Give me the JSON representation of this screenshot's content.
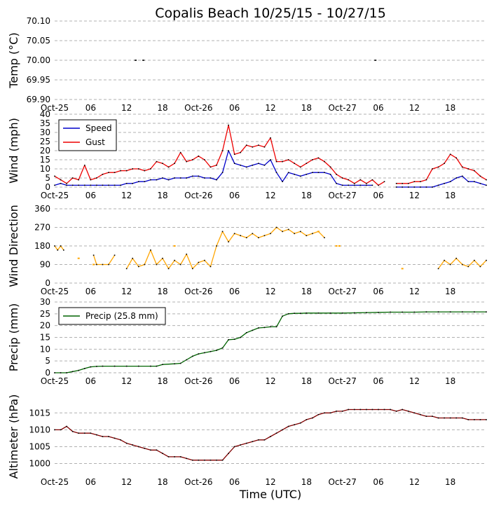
{
  "figure": {
    "title": "Copalis Beach 10/25/15 - 10/27/15",
    "xlabel": "Time (UTC)",
    "x_tick_labels": [
      "Oct-25",
      "06",
      "12",
      "18",
      "Oct-26",
      "06",
      "12",
      "18",
      "Oct-27",
      "06",
      "12",
      "18"
    ],
    "x_tick_hours": [
      0,
      6,
      12,
      18,
      24,
      30,
      36,
      42,
      48,
      54,
      60,
      66
    ],
    "x_range_hours": [
      0,
      72
    ]
  },
  "colors": {
    "speed": "#0000cc",
    "gust": "#ee0000",
    "direction": "#ffa500",
    "precip": "#006400",
    "altimeter": "#800000",
    "grid": "#b0b0b0"
  },
  "chart_data": [
    {
      "id": "temp",
      "type": "scatter",
      "ylabel": "Temp (°C)",
      "ylim": [
        69.9,
        70.1
      ],
      "yticks": [
        69.9,
        69.95,
        70.0,
        70.05,
        70.1
      ],
      "ytick_labels": [
        "69.90",
        "69.95",
        "70.00",
        "70.05",
        "70.10"
      ],
      "series": [
        {
          "name": "Temp",
          "color_key": "grid",
          "x": [
            13.5,
            14.8,
            53.5
          ],
          "y": [
            70.0,
            70.0,
            70.0
          ]
        }
      ]
    },
    {
      "id": "wind",
      "type": "line",
      "ylabel": "Wind (mph)",
      "ylim": [
        0,
        40
      ],
      "yticks": [
        0,
        5,
        10,
        15,
        20,
        25,
        30,
        35,
        40
      ],
      "ytick_labels": [
        "0",
        "5",
        "10",
        "15",
        "20",
        "25",
        "30",
        "35",
        "40"
      ],
      "legend": {
        "position": "top-left",
        "entries": [
          "Speed",
          "Gust"
        ]
      },
      "series": [
        {
          "name": "Speed",
          "color_key": "speed",
          "x": [
            0,
            1,
            2,
            3,
            4,
            5,
            6,
            7,
            8,
            9,
            10,
            11,
            12,
            13,
            14,
            15,
            16,
            17,
            18,
            19,
            20,
            21,
            22,
            23,
            24,
            25,
            26,
            27,
            28,
            29,
            30,
            31,
            32,
            33,
            34,
            35,
            36,
            37,
            38,
            39,
            40,
            41,
            42,
            43,
            44,
            45,
            46,
            47,
            48,
            49,
            50,
            51,
            52,
            53,
            54,
            55,
            56,
            57,
            58,
            59,
            60,
            61,
            62,
            63,
            64,
            65,
            66,
            67,
            68,
            69,
            70,
            71,
            72
          ],
          "y": [
            1,
            2,
            1,
            1,
            1,
            1,
            1,
            1,
            1,
            1,
            1,
            1,
            2,
            2,
            3,
            3,
            4,
            4,
            5,
            4,
            5,
            5,
            5,
            6,
            6,
            5,
            5,
            4,
            8,
            20,
            13,
            12,
            11,
            12,
            13,
            12,
            15,
            8,
            3,
            8,
            7,
            6,
            7,
            8,
            8,
            8,
            7,
            2,
            1,
            1,
            1,
            1,
            1,
            1,
            null,
            null,
            null,
            0,
            0,
            0,
            0,
            0,
            0,
            0,
            1,
            2,
            3,
            5,
            6,
            3,
            3,
            2,
            1
          ]
        },
        {
          "name": "Gust",
          "color_key": "gust",
          "x": [
            0,
            1,
            2,
            3,
            4,
            5,
            6,
            7,
            8,
            9,
            10,
            11,
            12,
            13,
            14,
            15,
            16,
            17,
            18,
            19,
            20,
            21,
            22,
            23,
            24,
            25,
            26,
            27,
            28,
            29,
            30,
            31,
            32,
            33,
            34,
            35,
            36,
            37,
            38,
            39,
            40,
            41,
            42,
            43,
            44,
            45,
            46,
            47,
            48,
            49,
            50,
            51,
            52,
            53,
            54,
            55,
            56,
            57,
            58,
            59,
            60,
            61,
            62,
            63,
            64,
            65,
            66,
            67,
            68,
            69,
            70,
            71,
            72
          ],
          "y": [
            6,
            4,
            2,
            5,
            4,
            12,
            4,
            5,
            7,
            8,
            8,
            9,
            9,
            10,
            10,
            9,
            10,
            14,
            13,
            11,
            13,
            19,
            14,
            15,
            17,
            15,
            11,
            12,
            20,
            34,
            18,
            19,
            23,
            22,
            23,
            22,
            27,
            14,
            14,
            15,
            13,
            11,
            13,
            15,
            16,
            14,
            11,
            7,
            5,
            4,
            2,
            4,
            2,
            4,
            1,
            3,
            null,
            2,
            2,
            2,
            3,
            3,
            4,
            10,
            11,
            13,
            18,
            16,
            11,
            10,
            9,
            6,
            4
          ]
        }
      ]
    },
    {
      "id": "direction",
      "type": "line",
      "ylabel": "Wind Direction",
      "ylim": [
        0,
        360
      ],
      "yticks": [
        0,
        90,
        180,
        270,
        360
      ],
      "ytick_labels": [
        "0",
        "90",
        "180",
        "270",
        "360"
      ],
      "series": [
        {
          "name": "Direction",
          "color_key": "direction",
          "x": [
            0,
            0.5,
            1,
            1.5,
            2,
            4,
            6,
            6.5,
            7,
            8,
            9,
            10,
            11,
            12,
            13,
            14,
            15,
            16,
            17,
            18,
            19,
            20,
            21,
            22,
            23,
            24,
            25,
            26,
            27,
            28,
            29,
            30,
            31,
            32,
            33,
            34,
            35,
            36,
            37,
            38,
            39,
            40,
            41,
            42,
            43,
            44,
            45,
            46,
            47,
            48,
            49,
            50,
            51,
            52,
            53,
            54,
            55,
            56,
            57,
            58,
            59,
            60,
            61,
            62,
            63,
            64,
            65,
            66,
            67,
            68,
            69,
            70,
            71,
            72
          ],
          "y": [
            180,
            160,
            180,
            160,
            null,
            null,
            null,
            135,
            90,
            90,
            90,
            135,
            null,
            70,
            120,
            80,
            90,
            160,
            90,
            120,
            70,
            110,
            90,
            140,
            70,
            100,
            110,
            80,
            180,
            250,
            200,
            240,
            230,
            220,
            240,
            220,
            230,
            240,
            270,
            250,
            260,
            240,
            250,
            230,
            240,
            250,
            220,
            null,
            null,
            null,
            null,
            null,
            null,
            null,
            null,
            null,
            null,
            null,
            null,
            null,
            null,
            null,
            null,
            null,
            null,
            70,
            110,
            90,
            120,
            90,
            80,
            110,
            80,
            110
          ]
        },
        {
          "name": "Direction (isolated)",
          "color_key": "direction",
          "x": [
            4,
            6.5,
            20,
            44,
            47,
            47.5,
            58
          ],
          "y": [
            120,
            90,
            180,
            250,
            180,
            180,
            70
          ]
        }
      ]
    },
    {
      "id": "precip",
      "type": "line",
      "ylabel": "Precip (mm)",
      "ylim": [
        0,
        30
      ],
      "yticks": [
        0,
        5,
        10,
        15,
        20,
        25,
        30
      ],
      "ytick_labels": [
        "0",
        "5",
        "10",
        "15",
        "20",
        "25",
        "30"
      ],
      "legend": {
        "position": "top-left",
        "entries": [
          "Precip (25.8 mm)"
        ]
      },
      "series": [
        {
          "name": "Precip (25.8 mm)",
          "color_key": "precip",
          "x": [
            0,
            1,
            2,
            3,
            4,
            5,
            6,
            7,
            8,
            10,
            12,
            14,
            16,
            17,
            18,
            20,
            21,
            22,
            23,
            24,
            25,
            26,
            27,
            28,
            29,
            30,
            31,
            32,
            33,
            34,
            35,
            36,
            37,
            38,
            39,
            40,
            41,
            42,
            44,
            46,
            48,
            50,
            52,
            54,
            56,
            58,
            60,
            62,
            64,
            66,
            68,
            70,
            72
          ],
          "y": [
            0,
            0,
            0,
            0.5,
            1,
            1.8,
            2.5,
            2.7,
            2.8,
            2.8,
            2.8,
            2.8,
            2.8,
            2.8,
            3.5,
            3.8,
            4,
            5.5,
            7,
            8,
            8.5,
            9,
            9.5,
            10.5,
            14,
            14.2,
            15,
            17,
            18,
            19,
            19.2,
            19.5,
            19.5,
            24,
            25,
            25.2,
            25.2,
            25.3,
            25.3,
            25.3,
            25.3,
            25.4,
            25.5,
            25.6,
            25.7,
            25.7,
            25.7,
            25.8,
            25.8,
            25.8,
            25.8,
            25.8,
            25.8
          ]
        }
      ]
    },
    {
      "id": "altimeter",
      "type": "line",
      "ylabel": "Altimeter (hPa)",
      "ylim": [
        997,
        1019
      ],
      "yticks": [
        1000,
        1005,
        1010,
        1015
      ],
      "ytick_labels": [
        "1000",
        "1005",
        "1010",
        "1015"
      ],
      "series": [
        {
          "name": "Altimeter",
          "color_key": "altimeter",
          "x": [
            0,
            1,
            2,
            3,
            4,
            5,
            6,
            7,
            8,
            9,
            10,
            11,
            12,
            13,
            14,
            15,
            16,
            17,
            18,
            19,
            20,
            21,
            22,
            23,
            24,
            25,
            26,
            27,
            28,
            29,
            30,
            31,
            32,
            33,
            34,
            35,
            36,
            37,
            38,
            39,
            40,
            41,
            42,
            43,
            44,
            45,
            46,
            47,
            48,
            49,
            50,
            51,
            52,
            53,
            54,
            55,
            56,
            57,
            58,
            59,
            60,
            61,
            62,
            63,
            64,
            65,
            66,
            67,
            68,
            69,
            70,
            71,
            72
          ],
          "y": [
            1010,
            1010,
            1011,
            1009.5,
            1009,
            1009,
            1009,
            1008.5,
            1008,
            1008,
            1007.5,
            1007,
            1006,
            1005.5,
            1005,
            1004.5,
            1004,
            1004,
            1003,
            1002,
            1002,
            1002,
            1001.5,
            1001,
            1001,
            1001,
            1001,
            1001,
            1001,
            1003,
            1005,
            1005.5,
            1006,
            1006.5,
            1007,
            1007,
            1008,
            1009,
            1010,
            1011,
            1011.5,
            1012,
            1013,
            1013.5,
            1014.5,
            1015,
            1015,
            1015.5,
            1015.5,
            1016,
            1016,
            1016,
            1016,
            1016,
            1016,
            1016,
            1016,
            1015.5,
            1016,
            1015.5,
            1015,
            1014.5,
            1014,
            1014,
            1013.5,
            1013.5,
            1013.5,
            1013.5,
            1013.5,
            1013,
            1013,
            1013,
            1013
          ]
        }
      ]
    }
  ]
}
